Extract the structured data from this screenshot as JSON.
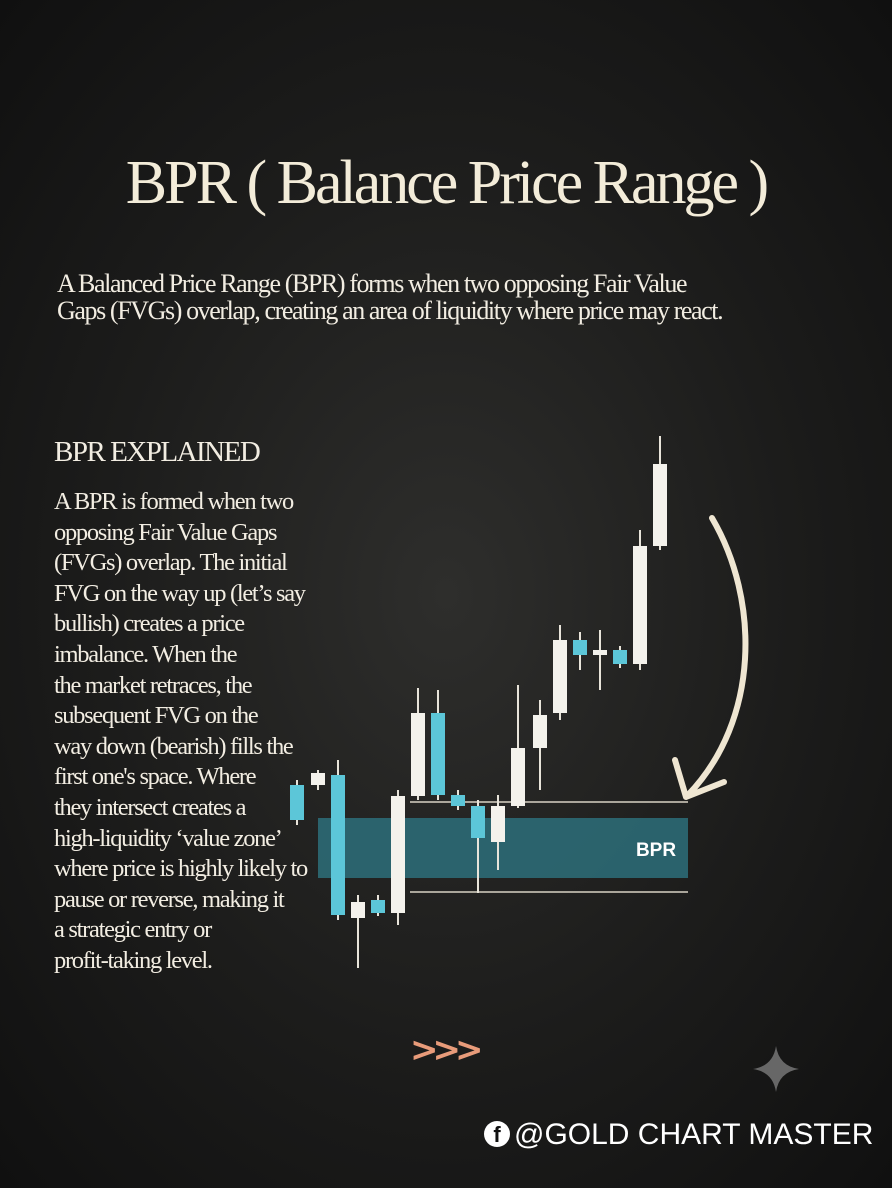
{
  "header": {
    "title": "BPR ( Balance Price Range )"
  },
  "intro": {
    "lines": [
      "A Balanced Price Range (BPR) forms when two opposing Fair Value",
      "Gaps (FVGs) overlap, creating an area of  liquidity where price may react."
    ]
  },
  "section": {
    "heading": "BPR EXPLAINED",
    "lines": [
      "A BPR is formed when two",
      "opposing Fair Value Gaps",
      "(FVGs) overlap. The initial",
      "FVG on the way up (let’s say",
      "bullish) creates a price",
      "imbalance. When the",
      "the market retraces, the",
      "subsequent FVG on the",
      "way down (bearish) fills the",
      "first one's space. Where",
      "they intersect creates a",
      "high-liquidity ‘value zone’",
      "where price is highly likely to",
      "pause or reverse, making it",
      "a strategic entry or",
      "profit-taking level."
    ]
  },
  "illustration": {
    "zone_label": "BPR"
  },
  "footer": {
    "arrows": ">>>",
    "credit": "@GOLD CHART MASTER"
  }
}
